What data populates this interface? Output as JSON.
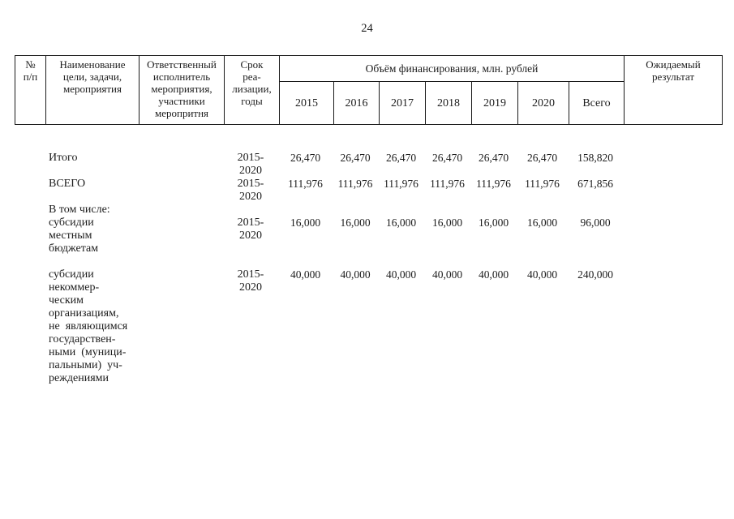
{
  "page": {
    "number": "24"
  },
  "table": {
    "header": {
      "col_num": "№\nп/п",
      "col_name": "Наименование\nцели, задачи,\nмероприятия",
      "col_executor": "Ответственный\nисполнитель\nмероприятия,\nучастники\nмеропритня",
      "col_term": "Срок\nреа-\nлизации,\nгоды",
      "col_funding": "Объём финансирования, млн. рублей",
      "years": [
        "2015",
        "2016",
        "2017",
        "2018",
        "2019",
        "2020",
        "Всего"
      ],
      "col_result": "Ожидаемый\nрезультат"
    },
    "rows": [
      {
        "name": "Итого",
        "term": "2015-\n2020",
        "values": [
          "26,470",
          "26,470",
          "26,470",
          "26,470",
          "26,470",
          "26,470",
          "158,820"
        ]
      },
      {
        "name": "ВСЕГО",
        "term": "2015-\n2020",
        "values": [
          "111,976",
          "111,976",
          "111,976",
          "111,976",
          "111,976",
          "111,976",
          "671,856"
        ]
      },
      {
        "name": "В том числе:",
        "term": "",
        "values": []
      },
      {
        "name": "субсидии\nместным\nбюджетам",
        "term": "2015-\n2020",
        "values": [
          "16,000",
          "16,000",
          "16,000",
          "16,000",
          "16,000",
          "16,000",
          "96,000"
        ]
      },
      {
        "name": "субсидии\nнекоммер-\nческим\nорганизациям,\nне  являющимся\nгосударствен-\nными  (муници-\nпальными)  уч-\nреждениями",
        "term": "2015-\n2020",
        "values": [
          "40,000",
          "40,000",
          "40,000",
          "40,000",
          "40,000",
          "40,000",
          "240,000"
        ]
      }
    ]
  }
}
